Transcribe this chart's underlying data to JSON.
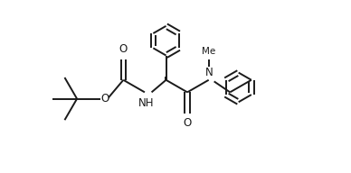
{
  "background": "#ffffff",
  "line_color": "#1a1a1a",
  "line_width": 1.4,
  "fig_width": 3.88,
  "fig_height": 1.92,
  "dpi": 100,
  "xlim": [
    0.0,
    10.0
  ],
  "ylim": [
    -1.5,
    5.5
  ]
}
